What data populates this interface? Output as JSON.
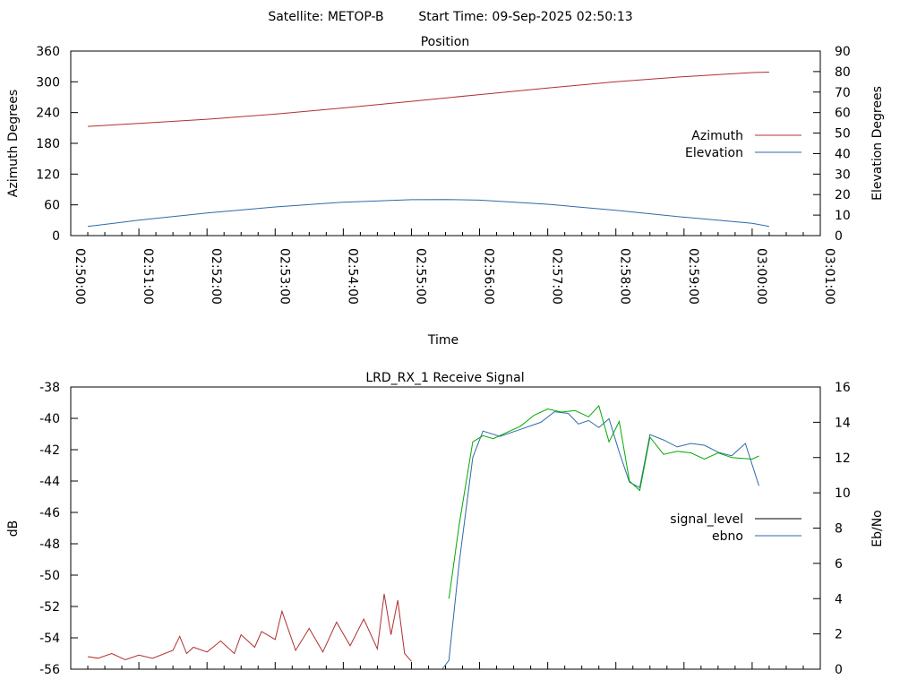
{
  "header": {
    "satellite": "Satellite: METOP-B",
    "start_time": "Start Time: 09-Sep-2025 02:50:13"
  },
  "chart_data": [
    {
      "type": "line",
      "title": "Position",
      "xlabel": "Time",
      "ylabel": "Azimuth Degrees",
      "y2label": "Elevation Degrees",
      "xticks": [
        "02:50:00",
        "02:51:00",
        "02:52:00",
        "02:53:00",
        "02:54:00",
        "02:55:00",
        "02:56:00",
        "02:57:00",
        "02:58:00",
        "02:59:00",
        "03:00:00",
        "03:01:00"
      ],
      "xlim_min": [
        0,
        11
      ],
      "ylim": [
        0,
        360
      ],
      "y2lim": [
        0,
        90
      ],
      "yticks": [
        0,
        60,
        120,
        180,
        240,
        300,
        360
      ],
      "y2ticks": [
        0,
        10,
        20,
        30,
        40,
        50,
        60,
        70,
        80,
        90
      ],
      "legend_position": "right",
      "series": [
        {
          "name": "Azimuth",
          "axis": "y1",
          "color": "#b03030",
          "x": [
            0.25,
            1,
            2,
            3,
            4,
            5,
            6,
            7,
            8,
            9,
            10,
            10.25
          ],
          "y": [
            213,
            219,
            227,
            237,
            249,
            262,
            275,
            288,
            300,
            310,
            318,
            319
          ]
        },
        {
          "name": "Elevation",
          "axis": "y2",
          "color": "#2e6aa8",
          "x": [
            0.25,
            1,
            2,
            3,
            4,
            5,
            5.5,
            6,
            7,
            8,
            9,
            10,
            10.25
          ],
          "y": [
            4.5,
            7.5,
            11,
            14,
            16.3,
            17.5,
            17.6,
            17.3,
            15.3,
            12.3,
            9,
            6,
            4.5
          ]
        }
      ]
    },
    {
      "type": "line",
      "title": "LRD_RX_1 Receive Signal",
      "ylabel": "dB",
      "y2label": "Eb/No",
      "ylim": [
        -56,
        -38
      ],
      "y2lim": [
        0,
        16
      ],
      "yticks": [
        -56,
        -54,
        -52,
        -50,
        -48,
        -46,
        -44,
        -42,
        -40,
        -38
      ],
      "y2ticks": [
        0,
        2,
        4,
        6,
        8,
        10,
        12,
        14,
        16
      ],
      "legend_position": "right",
      "series": [
        {
          "name": "signal_level",
          "color": "#000000"
        },
        {
          "name": "ebno",
          "color": "#2e6aa8"
        }
      ],
      "trace_colors": {
        "noise": "#b03030",
        "signal_green": "#00aa00",
        "ebno": "#2e6aa8"
      },
      "signal_level_noise": {
        "x": [
          0.25,
          0.4,
          0.6,
          0.8,
          1.0,
          1.2,
          1.5,
          1.6,
          1.7,
          1.8,
          2.0,
          2.2,
          2.4,
          2.5,
          2.7,
          2.8,
          3.0,
          3.1,
          3.3,
          3.5,
          3.7,
          3.9,
          4.1,
          4.3,
          4.5,
          4.6,
          4.7,
          4.8,
          4.9,
          5.0
        ],
        "y": [
          -55.2,
          -55.3,
          -55.0,
          -55.4,
          -55.1,
          -55.3,
          -54.8,
          -53.9,
          -55.0,
          -54.6,
          -54.9,
          -54.2,
          -55.0,
          -53.8,
          -54.6,
          -53.6,
          -54.1,
          -52.3,
          -54.8,
          -53.4,
          -54.9,
          -53.0,
          -54.5,
          -52.8,
          -54.7,
          -51.2,
          -53.8,
          -51.6,
          -55.0,
          -55.5
        ]
      },
      "signal_level_green": {
        "x": [
          5.55,
          5.7,
          5.9,
          6.05,
          6.2,
          6.4,
          6.6,
          6.8,
          7.0,
          7.2,
          7.4,
          7.6,
          7.75,
          7.9,
          8.05,
          8.2,
          8.35,
          8.5,
          8.7,
          8.9,
          9.1,
          9.3,
          9.5,
          9.7,
          10.0,
          10.1
        ],
        "y": [
          -51.5,
          -46.8,
          -41.5,
          -41.1,
          -41.3,
          -40.9,
          -40.5,
          -39.8,
          -39.4,
          -39.6,
          -39.5,
          -39.9,
          -39.2,
          -41.5,
          -40.2,
          -44.0,
          -44.6,
          -41.2,
          -42.3,
          -42.1,
          -42.2,
          -42.6,
          -42.2,
          -42.5,
          -42.6,
          -42.4
        ]
      },
      "ebno_series": {
        "x": [
          5.45,
          5.55,
          5.7,
          5.9,
          6.05,
          6.3,
          6.6,
          6.9,
          7.1,
          7.3,
          7.45,
          7.6,
          7.75,
          7.9,
          8.05,
          8.2,
          8.35,
          8.5,
          8.7,
          8.9,
          9.1,
          9.3,
          9.5,
          9.7,
          9.9,
          10.1
        ],
        "y": [
          0.0,
          0.5,
          6.0,
          12.0,
          13.5,
          13.2,
          13.6,
          14.0,
          14.6,
          14.5,
          13.9,
          14.1,
          13.7,
          14.2,
          12.3,
          10.6,
          10.3,
          13.3,
          13.0,
          12.6,
          12.8,
          12.7,
          12.3,
          12.1,
          12.8,
          10.4
        ]
      }
    }
  ]
}
